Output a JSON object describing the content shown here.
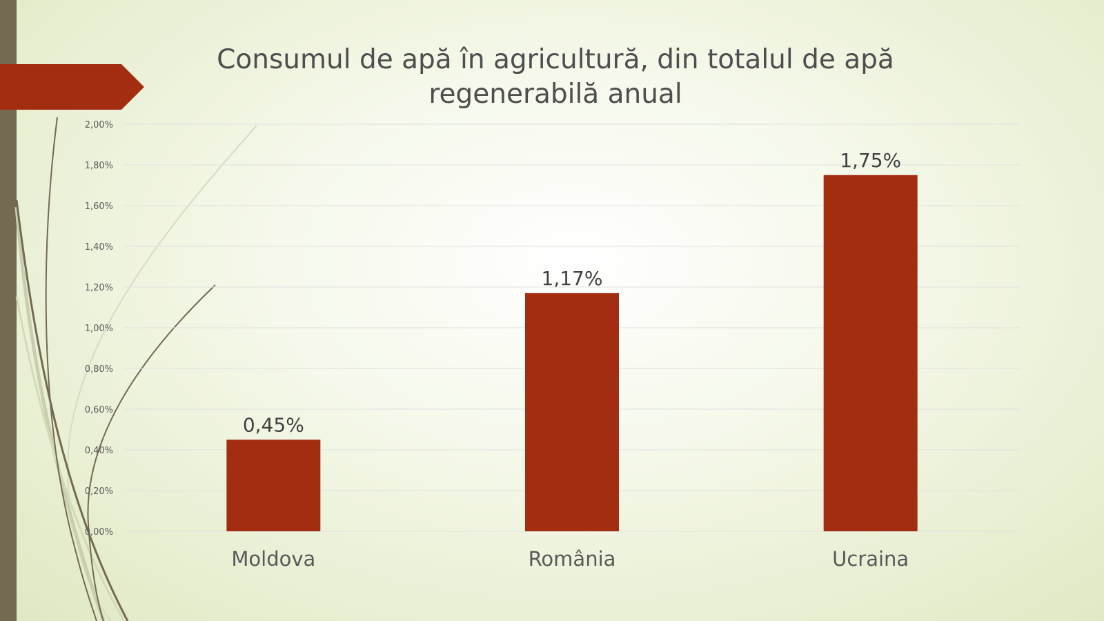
{
  "slide": {
    "title": "Consumul de apă în agricultură, din totalul de apă regenerabilă anual",
    "colors": {
      "accent": "#a32d10",
      "sidebar": "#736a51",
      "grid": "#e0e0e0",
      "text": "#595959"
    }
  },
  "chart_data": {
    "type": "bar",
    "title": "Consumul de apă în agricultură, din totalul de apă regenerabilă anual",
    "categories": [
      "Moldova",
      "România",
      "Ucraina"
    ],
    "values": [
      0.45,
      1.17,
      1.75
    ],
    "data_labels": [
      "0,45%",
      "1,17%",
      "1,75%"
    ],
    "yticks": [
      "0,00%",
      "0,20%",
      "0,40%",
      "0,60%",
      "0,80%",
      "1,00%",
      "1,20%",
      "1,40%",
      "1,60%",
      "1,80%",
      "2,00%"
    ],
    "ylim": [
      0,
      2.0
    ],
    "ystep": 0.2,
    "grid": true,
    "legend": "none",
    "xlabel": "",
    "ylabel": "",
    "bar_color": "#a32d10"
  }
}
